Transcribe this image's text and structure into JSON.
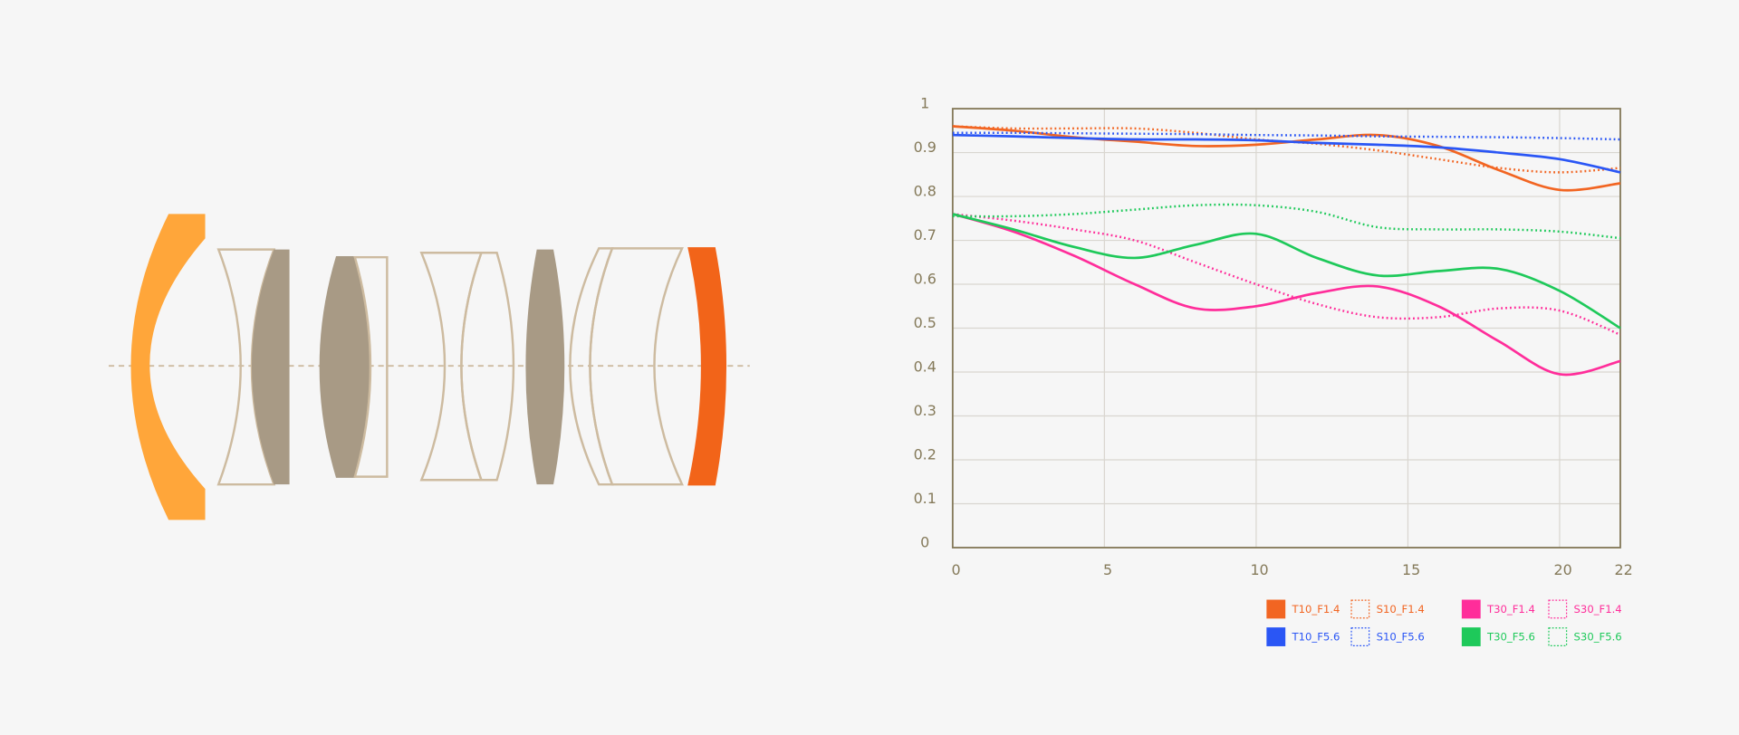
{
  "chart_data": {
    "type": "line",
    "x": [
      0,
      2,
      4,
      6,
      8,
      10,
      12,
      14,
      16,
      18,
      20,
      22
    ],
    "xlim": [
      0,
      22
    ],
    "xticks": [
      0,
      5,
      10,
      15,
      20,
      22
    ],
    "ylim": [
      0,
      1
    ],
    "yticks": [
      0,
      0.1,
      0.2,
      0.3,
      0.4,
      0.5,
      0.6,
      0.7,
      0.8,
      0.9,
      1
    ],
    "grid": true,
    "series": [
      {
        "name": "T10_F1.4",
        "color": "#f26522",
        "style": "solid",
        "values": [
          0.96,
          0.95,
          0.935,
          0.925,
          0.915,
          0.918,
          0.93,
          0.94,
          0.915,
          0.86,
          0.815,
          0.83
        ]
      },
      {
        "name": "S10_F1.4",
        "color": "#f26522",
        "style": "dotted",
        "values": [
          0.96,
          0.955,
          0.955,
          0.955,
          0.945,
          0.93,
          0.92,
          0.905,
          0.885,
          0.865,
          0.855,
          0.865
        ]
      },
      {
        "name": "T10_F5.6",
        "color": "#2a56f5",
        "style": "solid",
        "values": [
          0.94,
          0.937,
          0.933,
          0.93,
          0.93,
          0.928,
          0.922,
          0.918,
          0.912,
          0.9,
          0.885,
          0.855
        ]
      },
      {
        "name": "S10_F5.6",
        "color": "#2a56f5",
        "style": "dotted",
        "values": [
          0.945,
          0.945,
          0.944,
          0.943,
          0.942,
          0.94,
          0.939,
          0.937,
          0.936,
          0.935,
          0.933,
          0.93
        ]
      },
      {
        "name": "T30_F1.4",
        "color": "#ff2d9a",
        "style": "solid",
        "values": [
          0.76,
          0.72,
          0.665,
          0.6,
          0.545,
          0.55,
          0.58,
          0.595,
          0.55,
          0.47,
          0.395,
          0.425
        ]
      },
      {
        "name": "S30_F1.4",
        "color": "#ff2d9a",
        "style": "dotted",
        "values": [
          0.76,
          0.745,
          0.725,
          0.7,
          0.65,
          0.6,
          0.555,
          0.525,
          0.525,
          0.545,
          0.54,
          0.485
        ]
      },
      {
        "name": "T30_F5.6",
        "color": "#1ec95a",
        "style": "solid",
        "values": [
          0.76,
          0.725,
          0.685,
          0.66,
          0.69,
          0.715,
          0.66,
          0.62,
          0.63,
          0.635,
          0.585,
          0.5
        ]
      },
      {
        "name": "S30_F5.6",
        "color": "#1ec95a",
        "style": "dotted",
        "values": [
          0.755,
          0.755,
          0.76,
          0.77,
          0.78,
          0.78,
          0.765,
          0.73,
          0.725,
          0.725,
          0.72,
          0.705
        ]
      }
    ]
  }
}
